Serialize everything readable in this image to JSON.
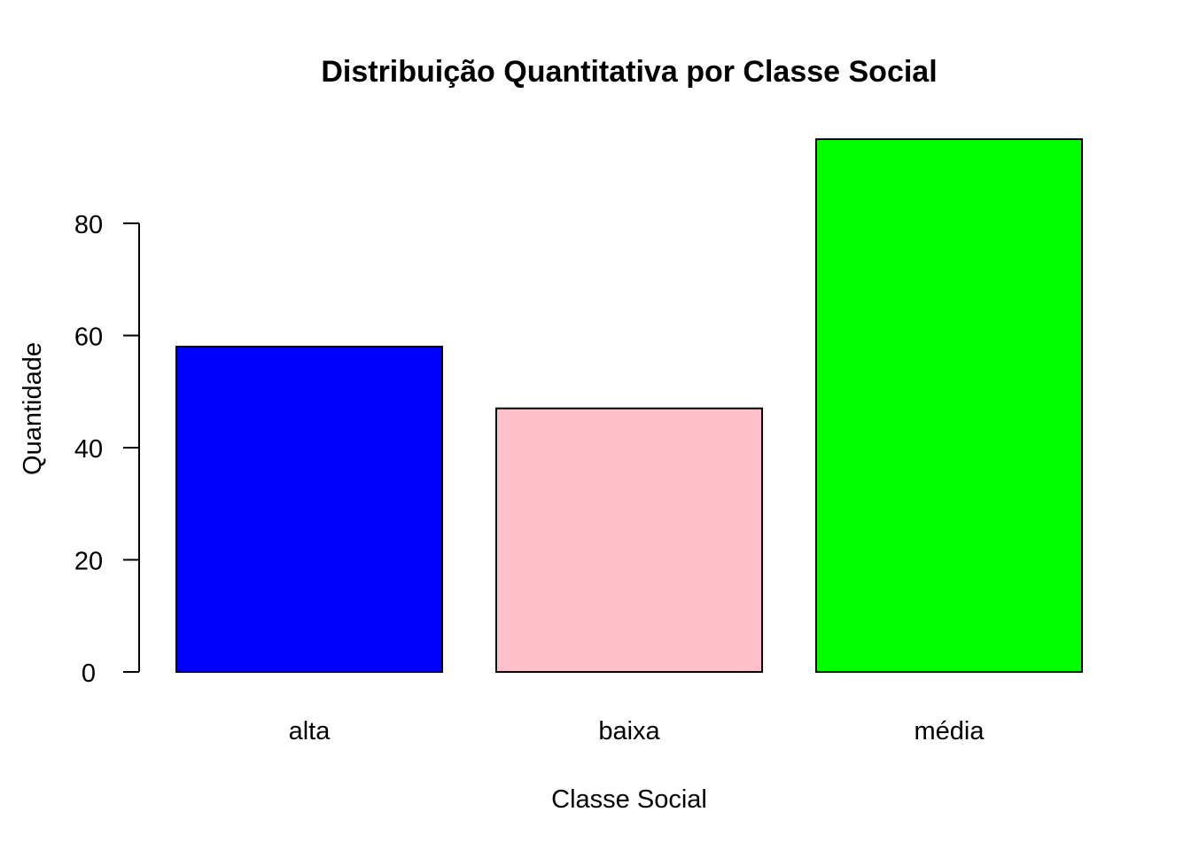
{
  "chart_data": {
    "type": "bar",
    "title": "Distribuição Quantitativa por Classe Social",
    "xlabel": "Classe Social",
    "ylabel": "Quantidade",
    "categories": [
      "alta",
      "baixa",
      "média"
    ],
    "values": [
      58,
      47,
      95
    ],
    "colors": [
      "#0000FF",
      "#FFC0CB",
      "#00FF00"
    ],
    "yticks": [
      0,
      20,
      40,
      60,
      80
    ],
    "ylim": [
      0,
      95
    ],
    "grid": false,
    "legend": "none"
  }
}
